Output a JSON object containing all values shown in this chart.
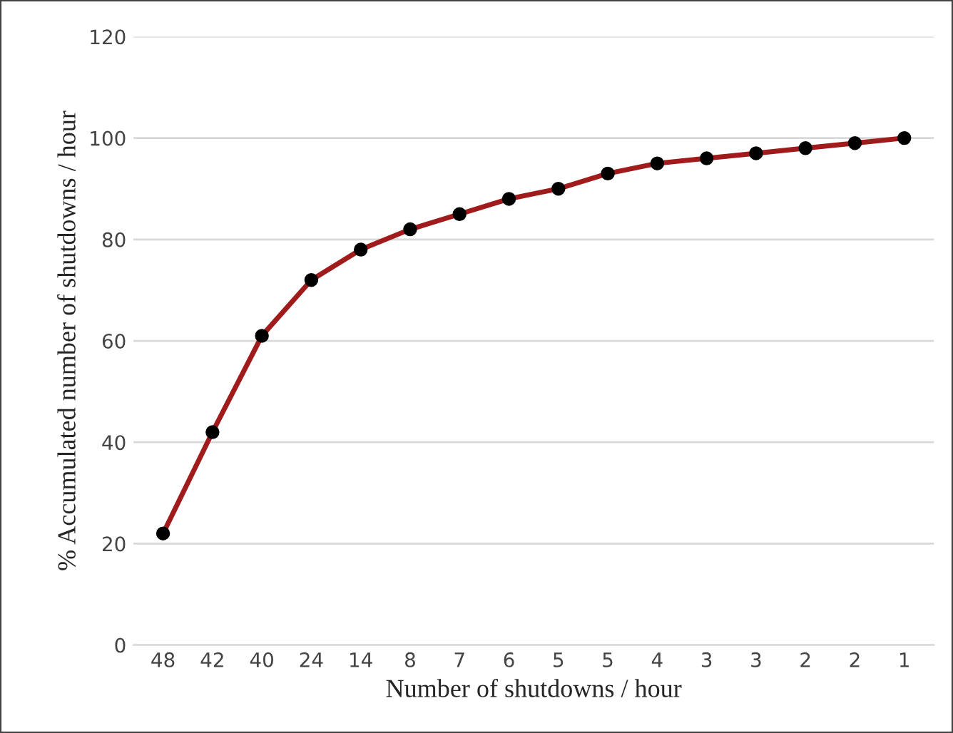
{
  "chart_data": {
    "type": "line",
    "xlabel": "Number of shutdowns / hour",
    "ylabel": "% Accumulated number of shutdowns / hour",
    "categories": [
      "48",
      "42",
      "40",
      "24",
      "14",
      "8",
      "7",
      "6",
      "5",
      "5",
      "4",
      "3",
      "3",
      "2",
      "2",
      "1"
    ],
    "series": [
      {
        "color": "#a01c1c",
        "values": [
          22,
          42,
          61,
          72,
          78,
          82,
          85,
          88,
          90,
          93,
          95,
          96,
          97,
          98,
          99,
          100
        ]
      }
    ],
    "ylim": [
      0,
      120
    ],
    "yticks": [
      0,
      20,
      40,
      60,
      80,
      100,
      120
    ],
    "grid": "y",
    "marker": "circle",
    "line_style": "solid"
  }
}
